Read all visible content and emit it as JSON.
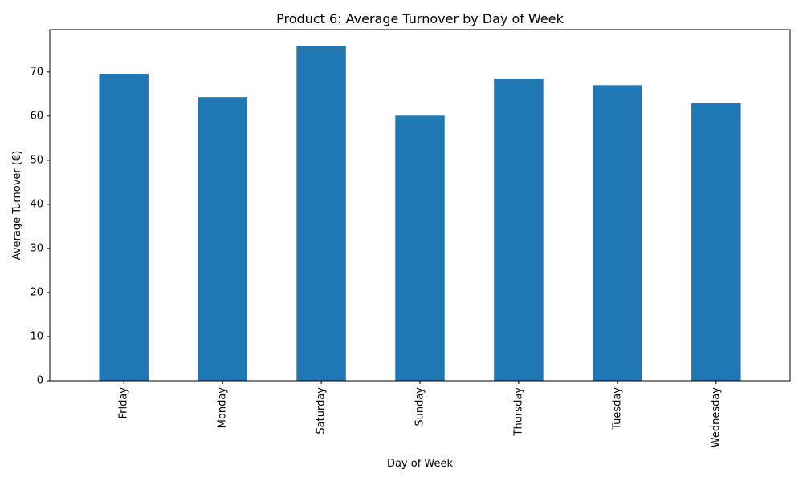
{
  "chart_data": {
    "type": "bar",
    "title": "Product 6: Average Turnover by Day of Week",
    "xlabel": "Day of Week",
    "ylabel": "Average Turnover (€)",
    "categories": [
      "Friday",
      "Monday",
      "Saturday",
      "Sunday",
      "Thursday",
      "Tuesday",
      "Wednesday"
    ],
    "values": [
      69.6,
      64.3,
      75.8,
      60.1,
      68.5,
      67.0,
      62.9
    ],
    "ylim": [
      0,
      79.6
    ],
    "yticks": [
      0,
      10,
      20,
      30,
      40,
      50,
      60,
      70
    ],
    "bar_color": "#1f77b4",
    "grid": false,
    "legend": "none"
  }
}
